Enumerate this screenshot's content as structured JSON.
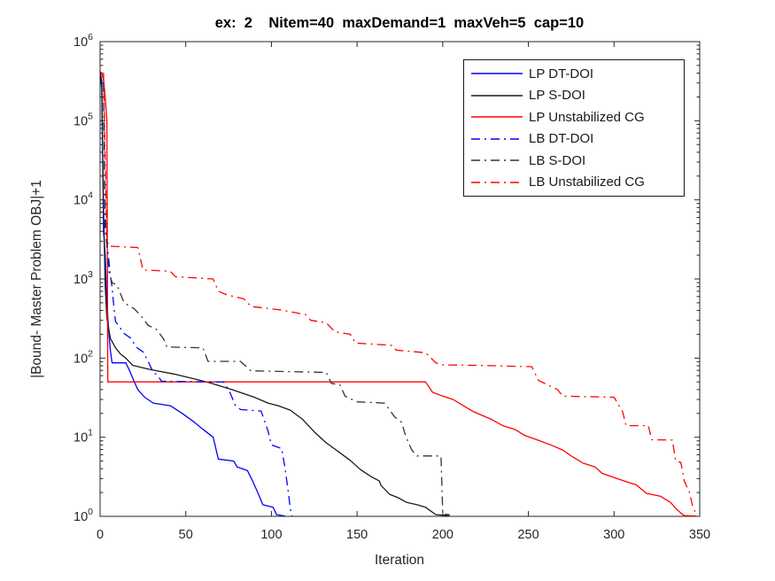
{
  "background": "#ffffff",
  "chart_data": {
    "type": "line",
    "title": "ex:  2    Nitem=40  maxDemand=1  maxVeh=5  cap=10",
    "xlabel": "Iteration",
    "ylabel": "|Bound- Master Problem OBJ|+1",
    "x_axis": {
      "min": 0,
      "max": 350,
      "ticks": [
        0,
        50,
        100,
        150,
        200,
        250,
        300,
        350
      ]
    },
    "y_axis": {
      "scale": "log10",
      "min_exponent": 0,
      "max_exponent": 6,
      "tick_exponents": [
        0,
        1,
        2,
        3,
        4,
        5,
        6
      ],
      "tick_base": "10"
    },
    "grid": false,
    "legend_position": "upper-right-inside",
    "axis_color": "#262626",
    "series": [
      {
        "name": "LP DT-DOI",
        "color": "#0000ff",
        "style": "solid",
        "points": [
          [
            0,
            420000
          ],
          [
            1,
            320000
          ],
          [
            2,
            4000
          ],
          [
            3,
            2000
          ],
          [
            4,
            500
          ],
          [
            5,
            224
          ],
          [
            6,
            126
          ],
          [
            7,
            87
          ],
          [
            15,
            87
          ],
          [
            17,
            71
          ],
          [
            20,
            50
          ],
          [
            22,
            40
          ],
          [
            26,
            32
          ],
          [
            31,
            27
          ],
          [
            41,
            25
          ],
          [
            48,
            20
          ],
          [
            55,
            15.5
          ],
          [
            60,
            12.6
          ],
          [
            66,
            10
          ],
          [
            69,
            5.3
          ],
          [
            78,
            5
          ],
          [
            80,
            4.2
          ],
          [
            86,
            3.8
          ],
          [
            89,
            2.8
          ],
          [
            92,
            2.0
          ],
          [
            95,
            1.4
          ],
          [
            101,
            1.3
          ],
          [
            103,
            1.05
          ],
          [
            108,
            1.01
          ]
        ]
      },
      {
        "name": "LP S-DOI",
        "color": "#1a1a1a",
        "style": "solid",
        "points": [
          [
            0,
            420000
          ],
          [
            1,
            250000
          ],
          [
            2,
            8000
          ],
          [
            3,
            800
          ],
          [
            4,
            316
          ],
          [
            6,
            178
          ],
          [
            9,
            135
          ],
          [
            12,
            112
          ],
          [
            15,
            100
          ],
          [
            19,
            81
          ],
          [
            29,
            72
          ],
          [
            43,
            63
          ],
          [
            56,
            54
          ],
          [
            65,
            48
          ],
          [
            77,
            40
          ],
          [
            90,
            32
          ],
          [
            98,
            27
          ],
          [
            104,
            25
          ],
          [
            111,
            22
          ],
          [
            118,
            17
          ],
          [
            125,
            11.7
          ],
          [
            132,
            8.5
          ],
          [
            139,
            6.6
          ],
          [
            146,
            5.1
          ],
          [
            152,
            3.9
          ],
          [
            158,
            3.2
          ],
          [
            163,
            2.8
          ],
          [
            164,
            2.45
          ],
          [
            169,
            1.9
          ],
          [
            174,
            1.72
          ],
          [
            179,
            1.5
          ],
          [
            185,
            1.4
          ],
          [
            190,
            1.3
          ],
          [
            196,
            1.05
          ],
          [
            204,
            1.02
          ]
        ]
      },
      {
        "name": "LP Unstabilized CG",
        "color": "#ff0000",
        "style": "solid",
        "points": [
          [
            0,
            420000
          ],
          [
            1,
            400000
          ],
          [
            2,
            330000
          ],
          [
            3,
            200000
          ],
          [
            4,
            100000
          ],
          [
            4.5,
            50
          ],
          [
            190,
            50
          ],
          [
            194,
            37
          ],
          [
            200,
            33
          ],
          [
            206,
            30
          ],
          [
            212,
            25
          ],
          [
            218,
            21
          ],
          [
            228,
            17
          ],
          [
            235,
            14
          ],
          [
            242,
            12.6
          ],
          [
            248,
            10.5
          ],
          [
            256,
            9.1
          ],
          [
            263,
            8
          ],
          [
            270,
            6.9
          ],
          [
            275,
            5.8
          ],
          [
            282,
            4.7
          ],
          [
            289,
            4.2
          ],
          [
            293,
            3.5
          ],
          [
            298,
            3.2
          ],
          [
            306,
            2.8
          ],
          [
            313,
            2.5
          ],
          [
            319,
            1.95
          ],
          [
            327,
            1.8
          ],
          [
            333,
            1.5
          ],
          [
            336,
            1.26
          ],
          [
            339,
            1.1
          ],
          [
            341,
            1.02
          ],
          [
            348,
            1.01
          ]
        ]
      },
      {
        "name": "LB DT-DOI",
        "color": "#0000ff",
        "style": "dashdot",
        "points": [
          [
            2,
            300000
          ],
          [
            3,
            4000
          ],
          [
            4,
            2800
          ],
          [
            5,
            1800
          ],
          [
            6,
            1100
          ],
          [
            7,
            800
          ],
          [
            8,
            450
          ],
          [
            9,
            290
          ],
          [
            14,
            205
          ],
          [
            18,
            178
          ],
          [
            21,
            138
          ],
          [
            25,
            120
          ],
          [
            28,
            91
          ],
          [
            31,
            66
          ],
          [
            33,
            62
          ],
          [
            36,
            51
          ],
          [
            72,
            50
          ],
          [
            75,
            40
          ],
          [
            77,
            32
          ],
          [
            79,
            25
          ],
          [
            82,
            22.4
          ],
          [
            94,
            21.4
          ],
          [
            96,
            16
          ],
          [
            98,
            12
          ],
          [
            100,
            8
          ],
          [
            106,
            7.2
          ],
          [
            108,
            4
          ],
          [
            109,
            2.8
          ],
          [
            110,
            1.9
          ],
          [
            111,
            1.26
          ],
          [
            112,
            1.01
          ]
        ]
      },
      {
        "name": "LB S-DOI",
        "color": "#333333",
        "style": "dashdot",
        "points": [
          [
            2,
            300000
          ],
          [
            3,
            8000
          ],
          [
            4,
            2500
          ],
          [
            5,
            1250
          ],
          [
            7,
            900
          ],
          [
            10,
            830
          ],
          [
            14,
            500
          ],
          [
            20,
            420
          ],
          [
            24,
            340
          ],
          [
            28,
            260
          ],
          [
            33,
            230
          ],
          [
            37,
            175
          ],
          [
            39,
            138
          ],
          [
            60,
            135
          ],
          [
            63,
            91
          ],
          [
            82,
            91
          ],
          [
            88,
            69
          ],
          [
            132,
            66
          ],
          [
            135,
            48
          ],
          [
            140,
            46
          ],
          [
            143,
            33
          ],
          [
            150,
            28
          ],
          [
            166,
            27
          ],
          [
            172,
            18
          ],
          [
            176,
            15.5
          ],
          [
            178,
            11
          ],
          [
            180,
            8.5
          ],
          [
            182,
            6.9
          ],
          [
            185,
            5.8
          ],
          [
            199,
            5.8
          ],
          [
            200,
            1.07
          ],
          [
            204,
            1.05
          ]
        ]
      },
      {
        "name": "LB Unstabilized CG",
        "color": "#ff0000",
        "style": "dashdot",
        "points": [
          [
            2,
            400000
          ],
          [
            3,
            30000
          ],
          [
            4,
            3200
          ],
          [
            5,
            2600
          ],
          [
            22,
            2500
          ],
          [
            25,
            1300
          ],
          [
            41,
            1250
          ],
          [
            44,
            1070
          ],
          [
            66,
            1000
          ],
          [
            69,
            700
          ],
          [
            74,
            630
          ],
          [
            84,
            560
          ],
          [
            88,
            450
          ],
          [
            104,
            410
          ],
          [
            107,
            400
          ],
          [
            120,
            355
          ],
          [
            123,
            300
          ],
          [
            132,
            280
          ],
          [
            137,
            215
          ],
          [
            146,
            200
          ],
          [
            149,
            155
          ],
          [
            170,
            145
          ],
          [
            173,
            126
          ],
          [
            190,
            117
          ],
          [
            196,
            87
          ],
          [
            200,
            82
          ],
          [
            221,
            81
          ],
          [
            240,
            79
          ],
          [
            252,
            78
          ],
          [
            256,
            52
          ],
          [
            267,
            40
          ],
          [
            270,
            33
          ],
          [
            300,
            32
          ],
          [
            305,
            21
          ],
          [
            307,
            14
          ],
          [
            320,
            14
          ],
          [
            322,
            9.3
          ],
          [
            334,
            9.2
          ],
          [
            336,
            5
          ],
          [
            339,
            4.8
          ],
          [
            341,
            2.8
          ],
          [
            344,
            2.0
          ],
          [
            346,
            1.3
          ],
          [
            348,
            1.07
          ]
        ]
      }
    ]
  }
}
